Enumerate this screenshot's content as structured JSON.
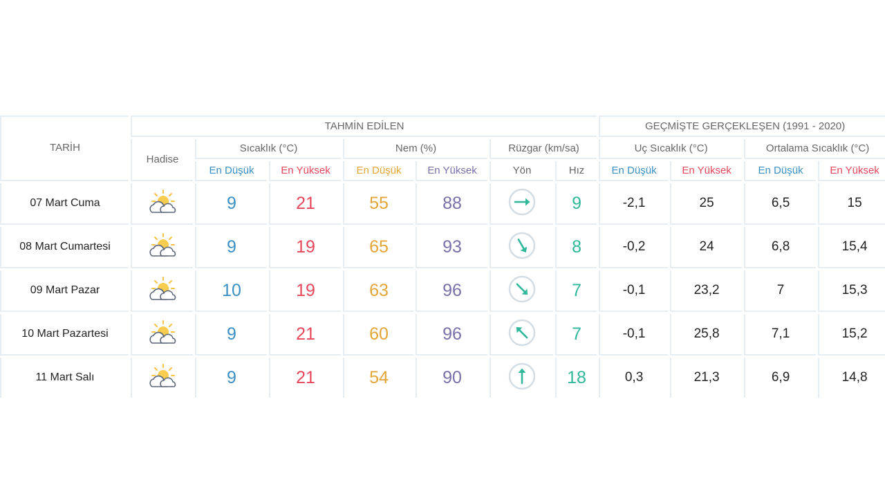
{
  "headers": {
    "date": "TARİH",
    "forecast_group": "TAHMİN EDİLEN",
    "history_group": "GEÇMİŞTE GERÇEKLEŞEN (1991 - 2020)",
    "event": "Hadise",
    "temperature": "Sıcaklık (°C)",
    "humidity": "Nem (%)",
    "wind": "Rüzgar (km/sa)",
    "extreme_temp": "Uç Sıcaklık (°C)",
    "average_temp": "Ortalama Sıcaklık (°C)",
    "lowest": "En Düşük",
    "highest": "En Yüksek",
    "direction": "Yön",
    "speed": "Hız"
  },
  "colors": {
    "low": "#3a8fc4",
    "high": "#e8465a",
    "humidity_low": "#e3a536",
    "humidity_high": "#7a6fa8",
    "wind": "#2fb89a",
    "grid": "#e6eef3"
  },
  "rows": [
    {
      "date": "07 Mart Cuma",
      "icon": "partly-cloudy-icon",
      "temp_low": "9",
      "temp_high": "21",
      "hum_low": "55",
      "hum_high": "88",
      "wind_dir_deg": 90,
      "wind_speed": "9",
      "ext_low": "-2,1",
      "ext_high": "25",
      "avg_low": "6,5",
      "avg_high": "15"
    },
    {
      "date": "08 Mart Cumartesi",
      "icon": "partly-cloudy-icon",
      "temp_low": "9",
      "temp_high": "19",
      "hum_low": "65",
      "hum_high": "93",
      "wind_dir_deg": 150,
      "wind_speed": "8",
      "ext_low": "-0,2",
      "ext_high": "24",
      "avg_low": "6,8",
      "avg_high": "15,4"
    },
    {
      "date": "09 Mart Pazar",
      "icon": "partly-cloudy-icon",
      "temp_low": "10",
      "temp_high": "19",
      "hum_low": "63",
      "hum_high": "96",
      "wind_dir_deg": 135,
      "wind_speed": "7",
      "ext_low": "-0,1",
      "ext_high": "23,2",
      "avg_low": "7",
      "avg_high": "15,3"
    },
    {
      "date": "10 Mart Pazartesi",
      "icon": "partly-cloudy-icon",
      "temp_low": "9",
      "temp_high": "21",
      "hum_low": "60",
      "hum_high": "96",
      "wind_dir_deg": 315,
      "wind_speed": "7",
      "ext_low": "-0,1",
      "ext_high": "25,8",
      "avg_low": "7,1",
      "avg_high": "15,2"
    },
    {
      "date": "11 Mart Salı",
      "icon": "partly-cloudy-icon",
      "temp_low": "9",
      "temp_high": "21",
      "hum_low": "54",
      "hum_high": "90",
      "wind_dir_deg": 0,
      "wind_speed": "18",
      "ext_low": "0,3",
      "ext_high": "21,3",
      "avg_low": "6,9",
      "avg_high": "14,8"
    }
  ]
}
